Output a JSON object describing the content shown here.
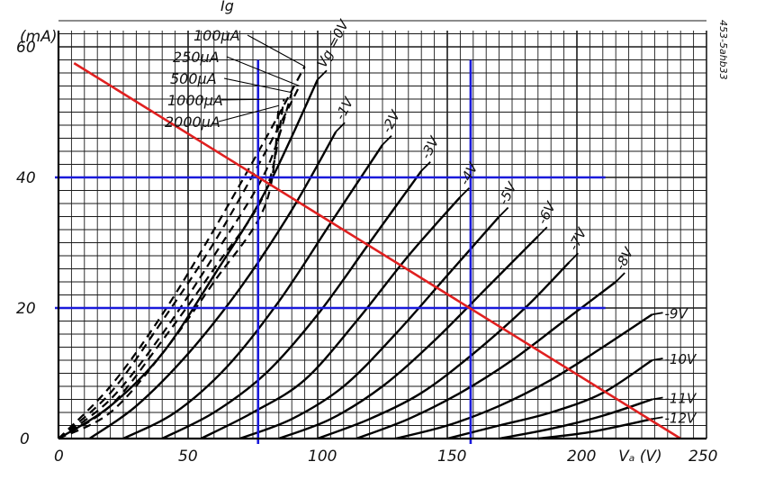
{
  "chart_data": {
    "type": "line",
    "title": "",
    "xlabel": "Vₐ (V)",
    "ylabel": "(mA)",
    "xlim": [
      0,
      250
    ],
    "ylim": [
      0,
      60
    ],
    "x_ticks": [
      "0",
      "50",
      "100",
      "150",
      "200",
      "250"
    ],
    "y_ticks": [
      "0",
      "20",
      "40",
      "60"
    ],
    "grid": true,
    "side_note": "453-5ahb33",
    "ig_header": "Ig",
    "colors": {
      "grid": "#1a1a1a",
      "curves": "#000000",
      "load_line": "#e02020",
      "markers": "#1a1adb"
    },
    "series": [
      {
        "name": "Vg =0V",
        "style": "solid",
        "points": [
          [
            0,
            0
          ],
          [
            20,
            5
          ],
          [
            40,
            13
          ],
          [
            60,
            25
          ],
          [
            80,
            38
          ],
          [
            100,
            55
          ]
        ]
      },
      {
        "name": "-1V",
        "style": "solid",
        "points": [
          [
            12,
            0
          ],
          [
            30,
            5
          ],
          [
            50,
            13
          ],
          [
            70,
            23
          ],
          [
            90,
            35
          ],
          [
            107,
            47
          ]
        ]
      },
      {
        "name": "-2V",
        "style": "solid",
        "points": [
          [
            25,
            0
          ],
          [
            45,
            4
          ],
          [
            65,
            11
          ],
          [
            85,
            21
          ],
          [
            105,
            33
          ],
          [
            125,
            45
          ]
        ]
      },
      {
        "name": "-3V",
        "style": "solid",
        "points": [
          [
            40,
            0
          ],
          [
            60,
            4
          ],
          [
            80,
            10
          ],
          [
            100,
            19
          ],
          [
            120,
            30
          ],
          [
            140,
            41
          ]
        ]
      },
      {
        "name": "-4V",
        "style": "solid",
        "points": [
          [
            55,
            0
          ],
          [
            75,
            4
          ],
          [
            95,
            9
          ],
          [
            115,
            18
          ],
          [
            135,
            28
          ],
          [
            155,
            37
          ]
        ]
      },
      {
        "name": "-5V",
        "style": "solid",
        "points": [
          [
            70,
            0
          ],
          [
            90,
            3
          ],
          [
            110,
            8
          ],
          [
            130,
            16
          ],
          [
            150,
            25
          ],
          [
            170,
            34
          ]
        ]
      },
      {
        "name": "-6V",
        "style": "solid",
        "points": [
          [
            85,
            0
          ],
          [
            105,
            3
          ],
          [
            125,
            8
          ],
          [
            145,
            15
          ],
          [
            165,
            23
          ],
          [
            185,
            31
          ]
        ]
      },
      {
        "name": "-7V",
        "style": "solid",
        "points": [
          [
            100,
            0
          ],
          [
            120,
            3
          ],
          [
            140,
            7
          ],
          [
            160,
            13
          ],
          [
            180,
            20
          ],
          [
            197,
            27
          ]
        ]
      },
      {
        "name": "-8V",
        "style": "solid",
        "points": [
          [
            115,
            0
          ],
          [
            135,
            3
          ],
          [
            155,
            7
          ],
          [
            175,
            12
          ],
          [
            195,
            18
          ],
          [
            215,
            24
          ]
        ]
      },
      {
        "name": "-9V",
        "style": "solid",
        "points": [
          [
            130,
            0
          ],
          [
            150,
            2
          ],
          [
            170,
            5
          ],
          [
            190,
            9
          ],
          [
            210,
            14
          ],
          [
            229,
            19
          ]
        ]
      },
      {
        "name": "-10V",
        "style": "solid",
        "points": [
          [
            150,
            0
          ],
          [
            170,
            2
          ],
          [
            190,
            4
          ],
          [
            210,
            7
          ],
          [
            229,
            12
          ]
        ]
      },
      {
        "name": "-11V",
        "style": "solid",
        "points": [
          [
            170,
            0
          ],
          [
            190,
            1.5
          ],
          [
            210,
            3.5
          ],
          [
            229,
            6
          ]
        ]
      },
      {
        "name": "-12V",
        "style": "solid",
        "points": [
          [
            185,
            0
          ],
          [
            205,
            1
          ],
          [
            229,
            3
          ]
        ]
      },
      {
        "name": "100μA",
        "style": "dashed",
        "points": [
          [
            0,
            0
          ],
          [
            20,
            8
          ],
          [
            40,
            19
          ],
          [
            60,
            32
          ],
          [
            80,
            46
          ],
          [
            95,
            57
          ]
        ]
      },
      {
        "name": "250μA",
        "style": "dashed",
        "points": [
          [
            0,
            0
          ],
          [
            20,
            7
          ],
          [
            40,
            18
          ],
          [
            60,
            30
          ],
          [
            80,
            44
          ],
          [
            93,
            54
          ]
        ]
      },
      {
        "name": "500μA",
        "style": "dashed",
        "points": [
          [
            0,
            0
          ],
          [
            20,
            6
          ],
          [
            40,
            16
          ],
          [
            60,
            28
          ],
          [
            80,
            41
          ],
          [
            90,
            53
          ]
        ]
      },
      {
        "name": "1000μA",
        "style": "dashed",
        "points": [
          [
            0,
            0
          ],
          [
            20,
            5
          ],
          [
            40,
            15
          ],
          [
            60,
            26
          ],
          [
            80,
            38
          ],
          [
            87,
            52
          ]
        ]
      },
      {
        "name": "2000μA",
        "style": "dashed",
        "points": [
          [
            0,
            0
          ],
          [
            20,
            4
          ],
          [
            40,
            13
          ],
          [
            60,
            24
          ],
          [
            80,
            36
          ],
          [
            85,
            51
          ]
        ]
      }
    ],
    "load_line": {
      "points": [
        [
          6,
          57.5
        ],
        [
          240,
          0
        ]
      ]
    },
    "marker_lines": {
      "vertical": [
        77,
        159
      ],
      "horizontal": [
        40,
        20
      ]
    }
  }
}
